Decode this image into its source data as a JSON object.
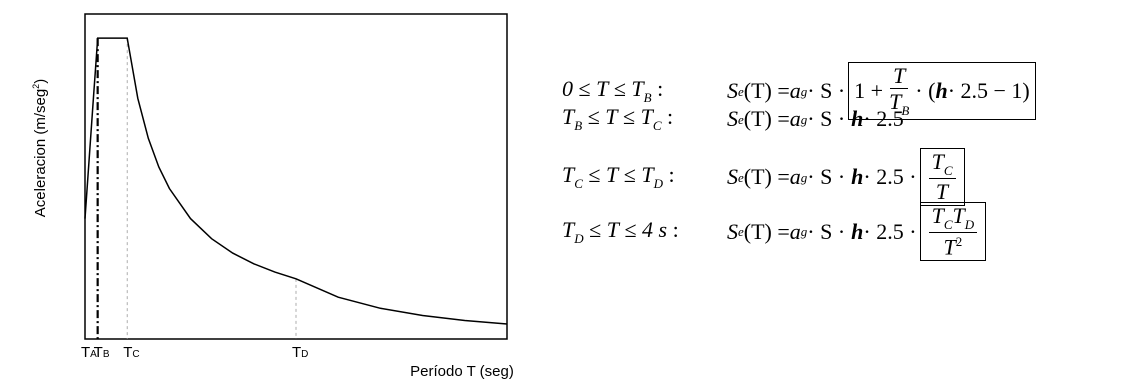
{
  "chart_data": {
    "type": "line",
    "ylabel": "Aceleracion (m/seg",
    "ylabel_sup": "2",
    "ylabel_close": ")",
    "xlabel": "Período T (seg)",
    "ticks": [
      {
        "main": "T",
        "sub": "A",
        "x": 0
      },
      {
        "main": "T",
        "sub": "B",
        "x": 0.12
      },
      {
        "main": "T",
        "sub": "C",
        "x": 0.4
      },
      {
        "main": "T",
        "sub": "D",
        "x": 2.0
      }
    ],
    "x": [
      0,
      0.04,
      0.08,
      0.12,
      0.4,
      0.5,
      0.6,
      0.7,
      0.8,
      1.0,
      1.2,
      1.4,
      1.6,
      1.8,
      2.0,
      2.4,
      2.8,
      3.2,
      3.6,
      4.0
    ],
    "y": [
      1.0,
      1.5,
      2.0,
      2.5,
      2.5,
      2.0,
      1.667,
      1.429,
      1.25,
      1.0,
      0.833,
      0.714,
      0.625,
      0.556,
      0.5,
      0.347,
      0.255,
      0.195,
      0.154,
      0.125
    ],
    "xlim": [
      0,
      4.0
    ],
    "ylim": [
      0,
      2.7
    ]
  },
  "formulas": [
    {
      "condition": {
        "a": "0",
        "op1": " ≤ ",
        "b": "T",
        "op2": " ≤ ",
        "c": "T",
        "c_sub": "B",
        "end": " :"
      },
      "lhs": {
        "s": "S",
        "s_sub": "e",
        "arg": "(T) = ",
        "a": "a",
        "a_sub": "g",
        "rest": " · S ·"
      },
      "body": {
        "one": "1 + ",
        "num": "T",
        "den": "T",
        "den_sub": "B",
        "mid": " · (",
        "eta": "h",
        "tail": " · 2.5 − 1)"
      }
    },
    {
      "condition": {
        "a": "T",
        "a_sub": "B",
        "op1": " ≤ ",
        "b": "T",
        "op2": " ≤ ",
        "c": "T",
        "c_sub": "C",
        "end": " :"
      },
      "lhs": {
        "s": "S",
        "s_sub": "e",
        "arg": "(T) = ",
        "a": "a",
        "a_sub": "g",
        "rest": " · S ·"
      },
      "body": {
        "eta": "h",
        "tail": " · 2.5"
      }
    },
    {
      "condition": {
        "a": "T",
        "a_sub": "C",
        "op1": " ≤ ",
        "b": "T",
        "op2": " ≤ ",
        "c": "T",
        "c_sub": "D",
        "end": " :"
      },
      "lhs": {
        "s": "S",
        "s_sub": "e",
        "arg": "(T) = ",
        "a": "a",
        "a_sub": "g",
        "rest": " · S ·"
      },
      "body": {
        "eta": "h",
        "tail": " · 2.5 ·",
        "num": "T",
        "num_sub": "C",
        "den": "T"
      }
    },
    {
      "condition": {
        "a": "T",
        "a_sub": "D",
        "op1": " ≤ ",
        "b": "T",
        "op2": " ≤ ",
        "c": "4 s",
        "end": " :"
      },
      "lhs": {
        "s": "S",
        "s_sub": "e",
        "arg": "(T) = ",
        "a": "a",
        "a_sub": "g",
        "rest": " · S ·"
      },
      "body": {
        "eta": "h",
        "tail": " · 2.5 ·",
        "num1": "T",
        "num1_sub": "C",
        "num2": "T",
        "num2_sub": "D",
        "den": "T",
        "den_sup": "2"
      }
    }
  ]
}
